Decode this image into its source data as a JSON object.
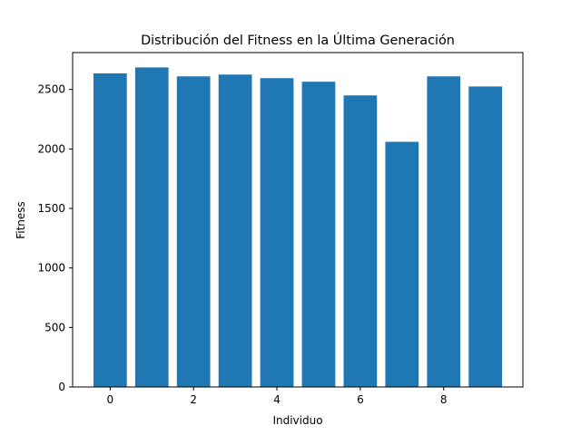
{
  "chart_data": {
    "type": "bar",
    "title": "Distribución del Fitness en la Última Generación",
    "xlabel": "Individuo",
    "ylabel": "Fitness",
    "x": [
      0,
      1,
      2,
      3,
      4,
      5,
      6,
      7,
      8,
      9
    ],
    "values": [
      2635,
      2685,
      2610,
      2625,
      2595,
      2565,
      2450,
      2060,
      2610,
      2525
    ],
    "bar_color": "#1f77b4",
    "xlim": [
      -0.9,
      9.9
    ],
    "ylim": [
      0,
      2810
    ],
    "xticks": [
      0,
      2,
      4,
      6,
      8
    ],
    "yticks": [
      0,
      500,
      1000,
      1500,
      2000,
      2500
    ],
    "grid": false,
    "legend": "none"
  }
}
